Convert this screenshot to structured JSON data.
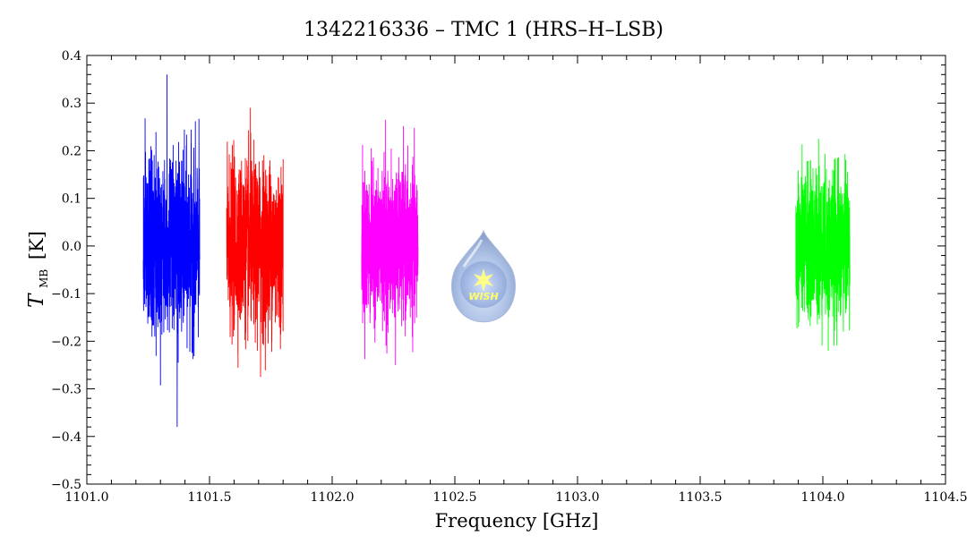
{
  "chart_data": {
    "type": "line",
    "title": "1342216336 – TMC 1 (HRS–H–LSB)",
    "xlabel": "Frequency [GHz]",
    "ylabel_main": "T",
    "ylabel_sub": "MB",
    "ylabel_unit": "[K]",
    "xlim": [
      1101.0,
      1104.5
    ],
    "ylim": [
      -0.5,
      0.4
    ],
    "x_ticks": [
      1101.0,
      1101.5,
      1102.0,
      1102.5,
      1103.0,
      1103.5,
      1104.0,
      1104.5
    ],
    "x_tick_labels": [
      "1101.0",
      "1101.5",
      "1102.0",
      "1102.5",
      "1103.0",
      "1103.5",
      "1104.0",
      "1104.5"
    ],
    "y_ticks": [
      -0.5,
      -0.4,
      -0.3,
      -0.2,
      -0.1,
      0.0,
      0.1,
      0.2,
      0.3,
      0.4
    ],
    "y_tick_labels": [
      "−0.5",
      "−0.4",
      "−0.3",
      "−0.2",
      "−0.1",
      "0.0",
      "0.1",
      "0.2",
      "0.3",
      "0.4"
    ],
    "grid": false,
    "series": [
      {
        "color": "#0000ff",
        "x_range": [
          1101.23,
          1101.46
        ],
        "mean": 0.0,
        "rms": 0.09,
        "max": 0.36,
        "min": -0.38
      },
      {
        "color": "#ff0000",
        "x_range": [
          1101.57,
          1101.8
        ],
        "mean": 0.0,
        "rms": 0.085,
        "max": 0.29,
        "min": -0.275
      },
      {
        "color": "#ff00ff",
        "x_range": [
          1102.12,
          1102.35
        ],
        "mean": 0.0,
        "rms": 0.075,
        "max": 0.265,
        "min": -0.25
      },
      {
        "color": "#00ff00",
        "x_range": [
          1103.89,
          1104.11
        ],
        "mean": 0.0,
        "rms": 0.075,
        "max": 0.225,
        "min": -0.22
      }
    ],
    "logo": {
      "text": "WISH"
    }
  }
}
